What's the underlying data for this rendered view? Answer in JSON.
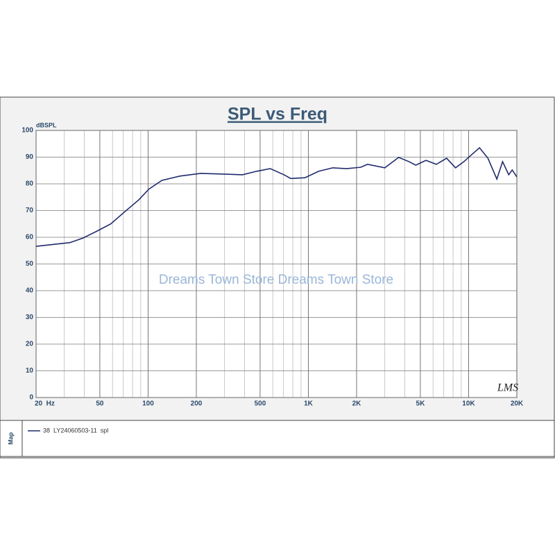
{
  "chart_data": {
    "type": "line",
    "title": "SPL vs Freq",
    "y_label": "dBSPL",
    "watermark": "Dreams Town Store Dreams Town Store",
    "logo": "LMS",
    "legend_title": "Map",
    "xscale": "log",
    "xlim": [
      20,
      20000
    ],
    "ylim": [
      0,
      100
    ],
    "grid": true,
    "xticks": [
      {
        "value": 20,
        "label": "20  Hz"
      },
      50,
      100,
      200,
      500,
      {
        "value": 1000,
        "label": "1K"
      },
      {
        "value": 2000,
        "label": "2K"
      },
      {
        "value": 5000,
        "label": "5K"
      },
      {
        "value": 10000,
        "label": "10K"
      },
      {
        "value": 20000,
        "label": "20K"
      }
    ],
    "xminor": [
      30,
      40,
      60,
      70,
      80,
      90,
      300,
      400,
      600,
      700,
      800,
      900,
      3000,
      4000,
      6000,
      7000,
      8000,
      9000
    ],
    "yticks": [
      0,
      10,
      20,
      30,
      40,
      50,
      60,
      70,
      80,
      90,
      100
    ],
    "x": [
      20,
      32.5,
      39.3,
      48,
      58.5,
      71,
      87.5,
      101,
      122,
      158,
      213,
      318,
      388,
      475,
      578,
      705,
      776,
      953,
      1160,
      1420,
      1730,
      2120,
      2340,
      3000,
      3660,
      4250,
      4680,
      5420,
      6290,
      7290,
      8290,
      9340,
      10300,
      11700,
      13200,
      15000,
      16300,
      17800,
      18700,
      20000
    ],
    "series": [
      {
        "name": "38  LY24060503-11  spl",
        "color": "#1f2a6b",
        "values": [
          56.6,
          58,
          59.7,
          62.3,
          65,
          69.4,
          74,
          78,
          81.3,
          82.9,
          83.9,
          83.6,
          83.4,
          84.7,
          85.7,
          83.4,
          82,
          82.3,
          84.7,
          86,
          85.7,
          86.2,
          87.3,
          86,
          89.9,
          88.3,
          87,
          88.8,
          87.3,
          89.6,
          86,
          88.3,
          90.6,
          93.5,
          89.6,
          81.8,
          88.3,
          83.4,
          85.2,
          82.6
        ]
      }
    ]
  }
}
